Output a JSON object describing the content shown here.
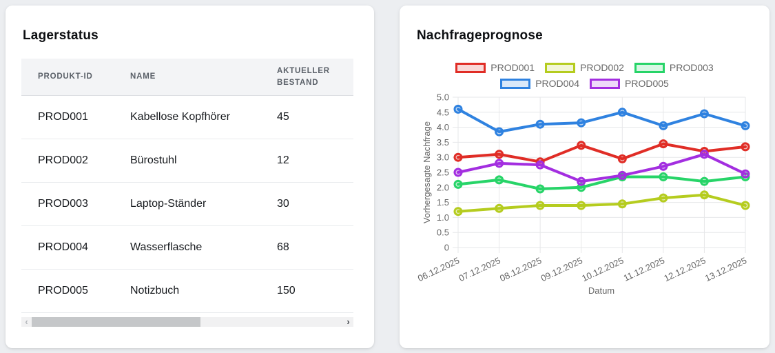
{
  "inventory_card": {
    "title": "Lagerstatus",
    "table": {
      "columns": [
        "PRODUKT-ID",
        "NAME",
        "AKTUELLER BESTAND"
      ],
      "rows": [
        {
          "id": "PROD001",
          "name": "Kabellose Kopfhörer",
          "stock": "45"
        },
        {
          "id": "PROD002",
          "name": "Bürostuhl",
          "stock": "12"
        },
        {
          "id": "PROD003",
          "name": "Laptop-Ständer",
          "stock": "30"
        },
        {
          "id": "PROD004",
          "name": "Wasserflasche",
          "stock": "68"
        },
        {
          "id": "PROD005",
          "name": "Notizbuch",
          "stock": "150"
        }
      ]
    },
    "scrollbar": {
      "left_arrow": "‹",
      "right_arrow": "›"
    }
  },
  "forecast_card": {
    "title": "Nachfrageprognose"
  },
  "chart_data": {
    "type": "line",
    "title": "Nachfrageprognose",
    "x": [
      "06.12.2025",
      "07.12.2025",
      "08.12.2025",
      "09.12.2025",
      "10.12.2025",
      "11.12.2025",
      "12.12.2025",
      "13.12.2025"
    ],
    "series": [
      {
        "name": "PROD001",
        "color": "#e02d26",
        "values": [
          3.0,
          3.1,
          2.85,
          3.4,
          2.95,
          3.45,
          3.2,
          3.35
        ]
      },
      {
        "name": "PROD002",
        "color": "#b5cc1f",
        "values": [
          1.2,
          1.3,
          1.4,
          1.4,
          1.45,
          1.65,
          1.75,
          1.4
        ]
      },
      {
        "name": "PROD003",
        "color": "#27d468",
        "values": [
          2.1,
          2.25,
          1.95,
          2.0,
          2.35,
          2.35,
          2.2,
          2.35
        ]
      },
      {
        "name": "PROD004",
        "color": "#2f82e0",
        "values": [
          4.6,
          3.85,
          4.1,
          4.15,
          4.5,
          4.05,
          4.45,
          4.05
        ]
      },
      {
        "name": "PROD005",
        "color": "#a32ee0",
        "values": [
          2.5,
          2.8,
          2.75,
          2.2,
          2.4,
          2.7,
          3.1,
          2.45
        ]
      }
    ],
    "xlabel": "Datum",
    "ylabel": "Vorhergesagte Nachfrage",
    "ylim": [
      0,
      5
    ],
    "ytick_step": 0.5,
    "legend_position": "top",
    "grid": true,
    "tick_color": "#666666",
    "grid_color": "#e6e7e9"
  }
}
